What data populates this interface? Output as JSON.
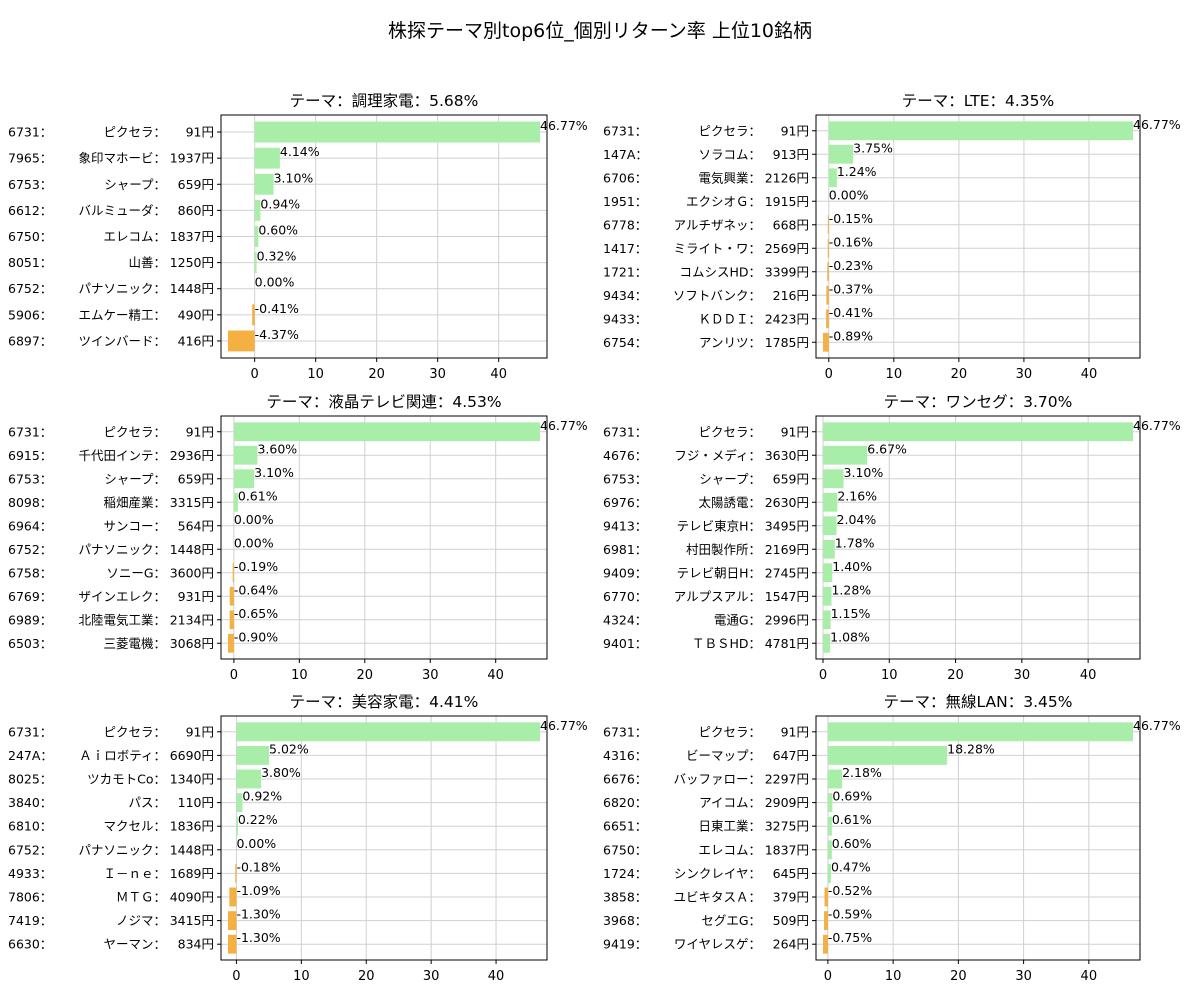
{
  "figure": {
    "title": "株探テーマ別top6位_個別リターン率 上位10銘柄"
  },
  "colors": {
    "positive": "#a8eea8",
    "negative": "#f4b040",
    "grid": "#d0d0d0",
    "axis": "#000000"
  },
  "chart_data": [
    {
      "type": "bar",
      "orientation": "horizontal",
      "title": "テーマ：調理家電：5.68%",
      "xlim": [
        -4.37,
        46.77
      ],
      "xticks": [
        0,
        10,
        20,
        30,
        40
      ],
      "grid": true,
      "bars": [
        {
          "code": "6731：",
          "name": "ピクセラ：",
          "price": "91円",
          "value": 46.77,
          "label": "46.77%"
        },
        {
          "code": "7965：",
          "name": "象印マホービ：",
          "price": "1937円",
          "value": 4.14,
          "label": "4.14%"
        },
        {
          "code": "6753：",
          "name": "シャープ：",
          "price": "659円",
          "value": 3.1,
          "label": "3.10%"
        },
        {
          "code": "6612：",
          "name": "バルミューダ：",
          "price": "860円",
          "value": 0.94,
          "label": "0.94%"
        },
        {
          "code": "6750：",
          "name": "エレコム：",
          "price": "1837円",
          "value": 0.6,
          "label": "0.60%"
        },
        {
          "code": "8051：",
          "name": "山善：",
          "price": "1250円",
          "value": 0.32,
          "label": "0.32%"
        },
        {
          "code": "6752：",
          "name": "パナソニック：",
          "price": "1448円",
          "value": 0.0,
          "label": "0.00%"
        },
        {
          "code": "5906：",
          "name": "エムケー精工：",
          "price": "490円",
          "value": -0.41,
          "label": "-0.41%"
        },
        {
          "code": "6897：",
          "name": "ツインバード：",
          "price": "416円",
          "value": -4.37,
          "label": "-4.37%"
        }
      ]
    },
    {
      "type": "bar",
      "orientation": "horizontal",
      "title": "テーマ：LTE：4.35%",
      "xlim": [
        -0.89,
        46.77
      ],
      "xticks": [
        0,
        10,
        20,
        30,
        40
      ],
      "grid": true,
      "bars": [
        {
          "code": "6731：",
          "name": "ピクセラ：",
          "price": "91円",
          "value": 46.77,
          "label": "46.77%"
        },
        {
          "code": "147A：",
          "name": "ソラコム：",
          "price": "913円",
          "value": 3.75,
          "label": "3.75%"
        },
        {
          "code": "6706：",
          "name": "電気興業：",
          "price": "2126円",
          "value": 1.24,
          "label": "1.24%"
        },
        {
          "code": "1951：",
          "name": "エクシオＧ：",
          "price": "1915円",
          "value": 0.0,
          "label": "0.00%"
        },
        {
          "code": "6778：",
          "name": "アルチザネッ：",
          "price": "668円",
          "value": -0.15,
          "label": "-0.15%"
        },
        {
          "code": "1417：",
          "name": "ミライト・ワ：",
          "price": "2569円",
          "value": -0.16,
          "label": "-0.16%"
        },
        {
          "code": "1721：",
          "name": "コムシスHD：",
          "price": "3399円",
          "value": -0.23,
          "label": "-0.23%"
        },
        {
          "code": "9434：",
          "name": "ソフトバンク：",
          "price": "216円",
          "value": -0.37,
          "label": "-0.37%"
        },
        {
          "code": "9433：",
          "name": "ＫＤＤＩ：",
          "price": "2423円",
          "value": -0.41,
          "label": "-0.41%"
        },
        {
          "code": "6754：",
          "name": "アンリツ：",
          "price": "1785円",
          "value": -0.89,
          "label": "-0.89%"
        }
      ]
    },
    {
      "type": "bar",
      "orientation": "horizontal",
      "title": "テーマ：液晶テレビ関連：4.53%",
      "xlim": [
        -0.9,
        46.77
      ],
      "xticks": [
        0,
        10,
        20,
        30,
        40
      ],
      "grid": true,
      "bars": [
        {
          "code": "6731：",
          "name": "ピクセラ：",
          "price": "91円",
          "value": 46.77,
          "label": "46.77%"
        },
        {
          "code": "6915：",
          "name": "千代田インテ：",
          "price": "2936円",
          "value": 3.6,
          "label": "3.60%"
        },
        {
          "code": "6753：",
          "name": "シャープ：",
          "price": "659円",
          "value": 3.1,
          "label": "3.10%"
        },
        {
          "code": "8098：",
          "name": "稲畑産業：",
          "price": "3315円",
          "value": 0.61,
          "label": "0.61%"
        },
        {
          "code": "6964：",
          "name": "サンコー：",
          "price": "564円",
          "value": 0.0,
          "label": "0.00%"
        },
        {
          "code": "6752：",
          "name": "パナソニック：",
          "price": "1448円",
          "value": 0.0,
          "label": "0.00%"
        },
        {
          "code": "6758：",
          "name": "ソニーG：",
          "price": "3600円",
          "value": -0.19,
          "label": "-0.19%"
        },
        {
          "code": "6769：",
          "name": "ザインエレク：",
          "price": "931円",
          "value": -0.64,
          "label": "-0.64%"
        },
        {
          "code": "6989：",
          "name": "北陸電気工業：",
          "price": "2134円",
          "value": -0.65,
          "label": "-0.65%"
        },
        {
          "code": "6503：",
          "name": "三菱電機：",
          "price": "3068円",
          "value": -0.9,
          "label": "-0.90%"
        }
      ]
    },
    {
      "type": "bar",
      "orientation": "horizontal",
      "title": "テーマ：ワンセグ：3.70%",
      "xlim": [
        0,
        46.77
      ],
      "xticks": [
        0,
        10,
        20,
        30,
        40
      ],
      "grid": true,
      "bars": [
        {
          "code": "6731：",
          "name": "ピクセラ：",
          "price": "91円",
          "value": 46.77,
          "label": "46.77%"
        },
        {
          "code": "4676：",
          "name": "フジ・メディ：",
          "price": "3630円",
          "value": 6.67,
          "label": "6.67%"
        },
        {
          "code": "6753：",
          "name": "シャープ：",
          "price": "659円",
          "value": 3.1,
          "label": "3.10%"
        },
        {
          "code": "6976：",
          "name": "太陽誘電：",
          "price": "2630円",
          "value": 2.16,
          "label": "2.16%"
        },
        {
          "code": "9413：",
          "name": "テレビ東京H：",
          "price": "3495円",
          "value": 2.04,
          "label": "2.04%"
        },
        {
          "code": "6981：",
          "name": "村田製作所：",
          "price": "2169円",
          "value": 1.78,
          "label": "1.78%"
        },
        {
          "code": "9409：",
          "name": "テレビ朝日H：",
          "price": "2745円",
          "value": 1.4,
          "label": "1.40%"
        },
        {
          "code": "6770：",
          "name": "アルプスアル：",
          "price": "1547円",
          "value": 1.28,
          "label": "1.28%"
        },
        {
          "code": "4324：",
          "name": "電通G：",
          "price": "2996円",
          "value": 1.15,
          "label": "1.15%"
        },
        {
          "code": "9401：",
          "name": "ＴＢＳHD：",
          "price": "4781円",
          "value": 1.08,
          "label": "1.08%"
        }
      ]
    },
    {
      "type": "bar",
      "orientation": "horizontal",
      "title": "テーマ：美容家電：4.41%",
      "xlim": [
        -1.3,
        46.77
      ],
      "xticks": [
        0,
        10,
        20,
        30,
        40
      ],
      "grid": true,
      "bars": [
        {
          "code": "6731：",
          "name": "ピクセラ：",
          "price": "91円",
          "value": 46.77,
          "label": "46.77%"
        },
        {
          "code": "247A：",
          "name": "Ａｉロボティ：",
          "price": "6690円",
          "value": 5.02,
          "label": "5.02%"
        },
        {
          "code": "8025：",
          "name": "ツカモトCo：",
          "price": "1340円",
          "value": 3.8,
          "label": "3.80%"
        },
        {
          "code": "3840：",
          "name": "パス：",
          "price": "110円",
          "value": 0.92,
          "label": "0.92%"
        },
        {
          "code": "6810：",
          "name": "マクセル：",
          "price": "1836円",
          "value": 0.22,
          "label": "0.22%"
        },
        {
          "code": "6752：",
          "name": "パナソニック：",
          "price": "1448円",
          "value": 0.0,
          "label": "0.00%"
        },
        {
          "code": "4933：",
          "name": "Ｉ－ｎｅ：",
          "price": "1689円",
          "value": -0.18,
          "label": "-0.18%"
        },
        {
          "code": "7806：",
          "name": "ＭＴＧ：",
          "price": "4090円",
          "value": -1.09,
          "label": "-1.09%"
        },
        {
          "code": "7419：",
          "name": "ノジマ：",
          "price": "3415円",
          "value": -1.3,
          "label": "-1.30%"
        },
        {
          "code": "6630：",
          "name": "ヤーマン：",
          "price": "834円",
          "value": -1.3,
          "label": "-1.30%"
        }
      ]
    },
    {
      "type": "bar",
      "orientation": "horizontal",
      "title": "テーマ：無線LAN：3.45%",
      "xlim": [
        -0.75,
        46.77
      ],
      "xticks": [
        0,
        10,
        20,
        30,
        40
      ],
      "grid": true,
      "bars": [
        {
          "code": "6731：",
          "name": "ピクセラ：",
          "price": "91円",
          "value": 46.77,
          "label": "46.77%"
        },
        {
          "code": "4316：",
          "name": "ビーマップ：",
          "price": "647円",
          "value": 18.28,
          "label": "18.28%"
        },
        {
          "code": "6676：",
          "name": "バッファロー：",
          "price": "2297円",
          "value": 2.18,
          "label": "2.18%"
        },
        {
          "code": "6820：",
          "name": "アイコム：",
          "price": "2909円",
          "value": 0.69,
          "label": "0.69%"
        },
        {
          "code": "6651：",
          "name": "日東工業：",
          "price": "3275円",
          "value": 0.61,
          "label": "0.61%"
        },
        {
          "code": "6750：",
          "name": "エレコム：",
          "price": "1837円",
          "value": 0.6,
          "label": "0.60%"
        },
        {
          "code": "1724：",
          "name": "シンクレイヤ：",
          "price": "645円",
          "value": 0.47,
          "label": "0.47%"
        },
        {
          "code": "3858：",
          "name": "ユビキタスＡ：",
          "price": "379円",
          "value": -0.52,
          "label": "-0.52%"
        },
        {
          "code": "3968：",
          "name": "セグエG：",
          "price": "509円",
          "value": -0.59,
          "label": "-0.59%"
        },
        {
          "code": "9419：",
          "name": "ワイヤレスゲ：",
          "price": "264円",
          "value": -0.75,
          "label": "-0.75%"
        }
      ]
    }
  ]
}
